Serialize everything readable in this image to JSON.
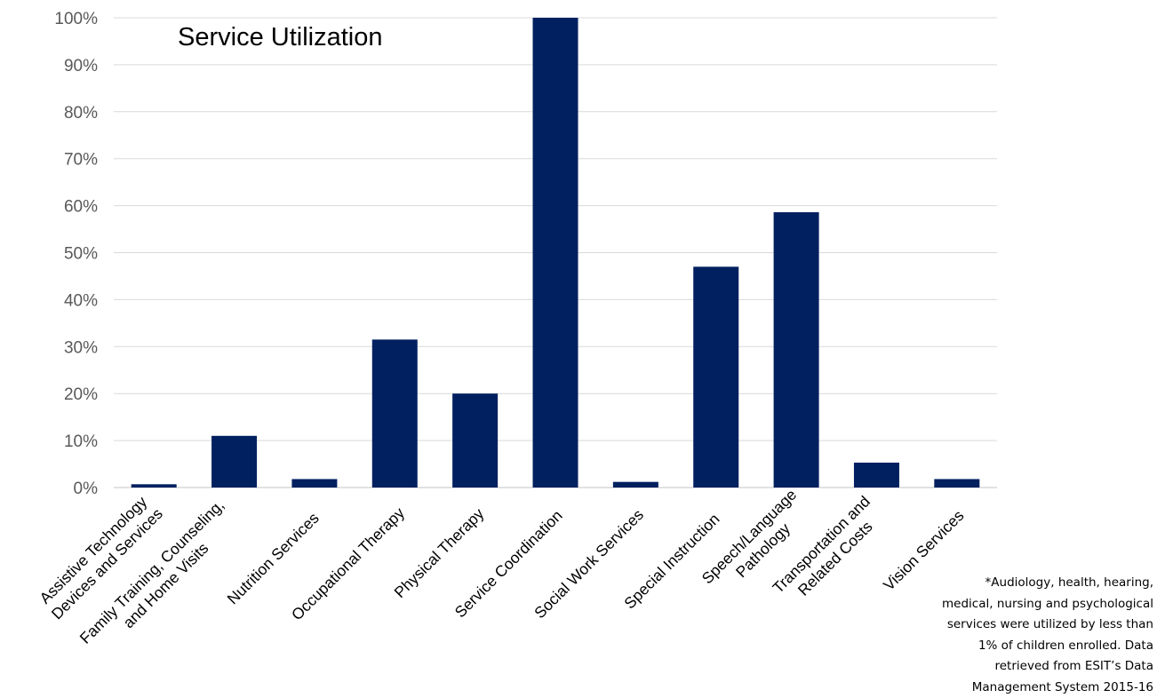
{
  "chart_data": {
    "type": "bar",
    "title": "Service Utilization",
    "xlabel": "",
    "ylabel": "",
    "ylim": [
      0,
      100
    ],
    "yticks": [
      "0%",
      "10%",
      "20%",
      "30%",
      "40%",
      "50%",
      "60%",
      "70%",
      "80%",
      "90%",
      "100%"
    ],
    "grid": true,
    "legend": "none",
    "bar_color": "#002060",
    "grid_color": "#d9d9d9",
    "categories": [
      [
        "Assistive Technology",
        "Devices and Services"
      ],
      [
        "Family Training, Counseling,",
        "and Home Visits"
      ],
      [
        "Nutrition Services"
      ],
      [
        "Occupational Therapy"
      ],
      [
        "Physical Therapy"
      ],
      [
        "Service Coordination"
      ],
      [
        "Social Work Services"
      ],
      [
        "Special Instruction"
      ],
      [
        "Speech/Language",
        "Pathology"
      ],
      [
        "Transportation and",
        "Related Costs"
      ],
      [
        "Vision Services"
      ]
    ],
    "values": [
      0.7,
      11,
      1.8,
      31.5,
      20,
      100,
      1.2,
      47,
      58.6,
      5.3,
      1.8
    ]
  },
  "footnote": [
    "*Audiology, health, hearing,",
    "medical, nursing and psychological",
    "services were utilized by less than",
    "1% of children enrolled.  Data",
    "retrieved from ESIT’s Data",
    "Management System 2015-16"
  ]
}
